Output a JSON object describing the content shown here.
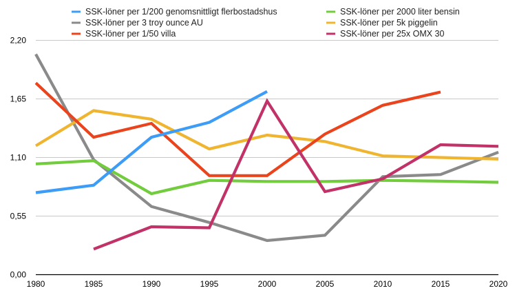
{
  "chart_data": {
    "type": "line",
    "title": "",
    "xlabel": "",
    "ylabel": "",
    "x": [
      1980,
      1985,
      1990,
      1995,
      2000,
      2005,
      2010,
      2015,
      2020
    ],
    "x_tick_labels": [
      "1980",
      "1985",
      "1990",
      "1995",
      "2000",
      "2005",
      "2010",
      "2015",
      "2020"
    ],
    "ylim": [
      0,
      2.2
    ],
    "y_ticks": [
      0,
      0.55,
      1.1,
      1.65,
      2.2
    ],
    "y_tick_labels": [
      "0,00",
      "0,55",
      "1,10",
      "1,65",
      "2,20"
    ],
    "grid": true,
    "legend_position": "top",
    "series": [
      {
        "name": "SSK-löner per 1/200 genomsnittligt flerbostadshus",
        "color": "#3d9cf6",
        "values": [
          0.77,
          0.84,
          1.29,
          1.43,
          1.72,
          null,
          null,
          null,
          null
        ]
      },
      {
        "name": "SSK-löner per 2000 liter bensin",
        "color": "#72cc3e",
        "values": [
          1.04,
          1.07,
          0.76,
          0.885,
          0.875,
          0.875,
          0.885,
          0.878,
          0.867
        ]
      },
      {
        "name": "SSK-löner per 3 troy ounce AU",
        "color": "#8a8a8a",
        "values": [
          2.07,
          1.08,
          0.64,
          0.49,
          0.32,
          0.37,
          0.92,
          0.94,
          1.15
        ]
      },
      {
        "name": "SSK-löner per 5k piggelin",
        "color": "#f0b530",
        "values": [
          1.21,
          1.54,
          1.46,
          1.18,
          1.31,
          1.25,
          1.115,
          1.1,
          1.085
        ]
      },
      {
        "name": "SSK-löner per 1/50 villa",
        "color": "#e9441d",
        "values": [
          1.8,
          1.29,
          1.42,
          0.93,
          0.93,
          1.32,
          1.59,
          1.715,
          null
        ]
      },
      {
        "name": "SSK-löner per 25x OMX 30",
        "color": "#c13368",
        "values": [
          null,
          0.24,
          0.45,
          0.44,
          1.63,
          0.78,
          0.9,
          1.22,
          1.205
        ]
      }
    ]
  }
}
